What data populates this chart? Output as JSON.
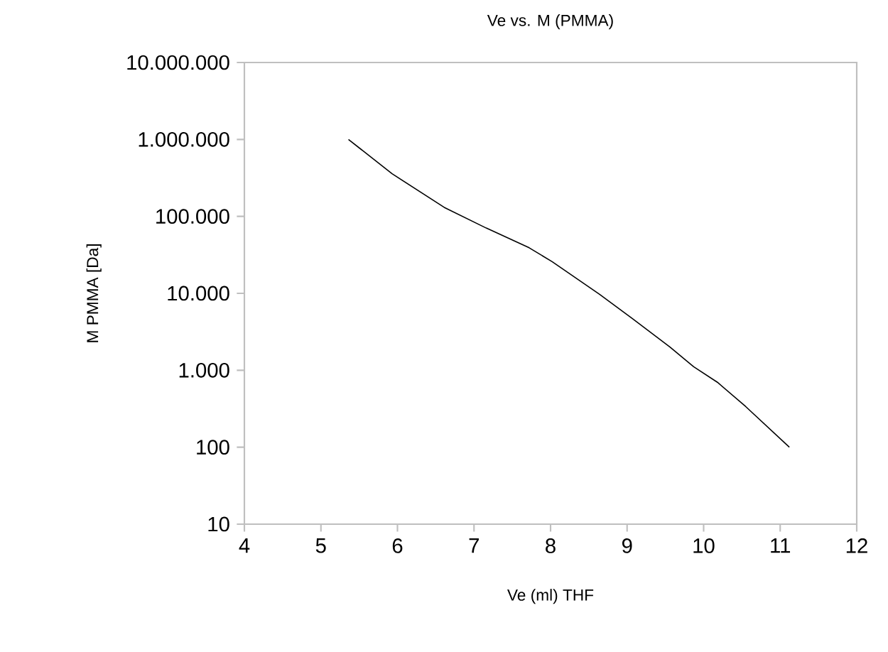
{
  "chart_data": {
    "type": "line",
    "title": "Ve vs. M (PMMA)",
    "xlabel": "Ve (ml) THF",
    "ylabel": "M PMMA [Da]",
    "log": "y",
    "grid": false,
    "marker": "none",
    "line_style": "solid",
    "xlim": [
      4,
      12
    ],
    "xticks": [
      4,
      5,
      6,
      7,
      8,
      9,
      10,
      11,
      12
    ],
    "ylim": [
      10,
      10000000
    ],
    "yticks": [
      10,
      100,
      {
        "value": 1000,
        "label": "1.000"
      },
      {
        "value": 10000,
        "label": "10.000"
      },
      {
        "value": 100000,
        "label": "100.000"
      },
      {
        "value": 1000000,
        "label": "1.000.000"
      },
      {
        "value": 10000000,
        "label": "10.000.000"
      }
    ],
    "series": [
      {
        "color": "#000000",
        "x": [
          5.36,
          5.93,
          6.61,
          7.16,
          7.72,
          8.02,
          8.64,
          9.07,
          9.56,
          9.87,
          10.18,
          10.55,
          11.12
        ],
        "values": [
          1000000,
          358000,
          131000,
          70500,
          39100,
          25800,
          9700,
          4690,
          2000,
          1110,
          698,
          337,
          100
        ]
      }
    ]
  }
}
